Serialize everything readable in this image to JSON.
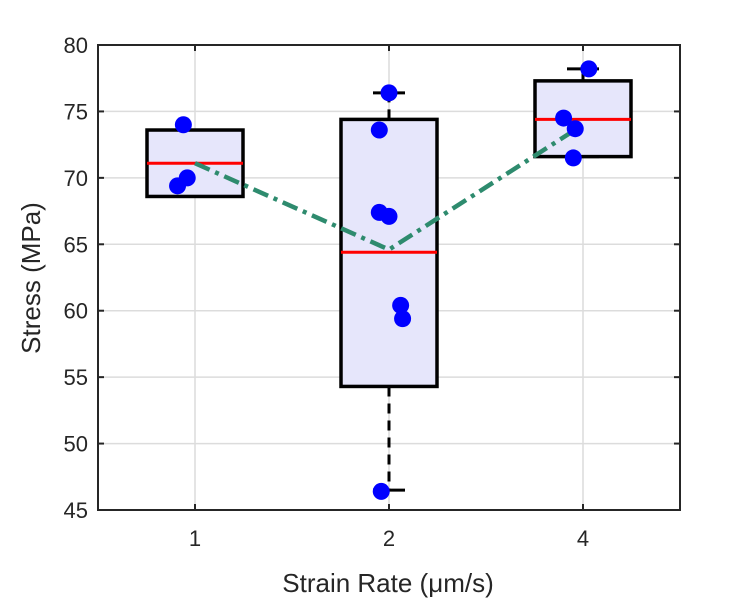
{
  "chart_data": {
    "type": "box",
    "xlabel": "Strain Rate (μm/s)",
    "ylabel": "Stress (MPa)",
    "categories": [
      "1",
      "2",
      "4"
    ],
    "ylim": [
      45,
      80
    ],
    "yticks": [
      45,
      50,
      55,
      60,
      65,
      70,
      75,
      80
    ],
    "grid": true,
    "boxes": [
      {
        "category": "1",
        "q1": 68.6,
        "median": 71.1,
        "q3": 73.6,
        "whisker_low": 68.6,
        "whisker_high": 73.6,
        "points": [
          [
            0.94,
            74.0
          ],
          [
            0.91,
            69.4
          ],
          [
            0.96,
            70.0
          ]
        ]
      },
      {
        "category": "2",
        "q1": 54.3,
        "median": 64.4,
        "q3": 74.4,
        "whisker_low": 46.5,
        "whisker_high": 76.4,
        "points": [
          [
            2.0,
            76.4
          ],
          [
            1.95,
            73.6
          ],
          [
            1.95,
            67.4
          ],
          [
            2.0,
            67.1
          ],
          [
            2.06,
            60.4
          ],
          [
            2.07,
            59.4
          ],
          [
            1.96,
            46.4
          ]
        ]
      },
      {
        "category": "4",
        "q1": 71.6,
        "median": 74.4,
        "q3": 77.3,
        "whisker_low": 71.6,
        "whisker_high": 78.2,
        "points": [
          [
            3.03,
            78.2
          ],
          [
            2.9,
            74.5
          ],
          [
            2.96,
            73.7
          ],
          [
            2.95,
            71.5
          ]
        ]
      }
    ],
    "mean_line": {
      "x": [
        1,
        2,
        3
      ],
      "y": [
        71.1,
        64.6,
        74.0
      ],
      "style": "dash-dot"
    },
    "colors": {
      "box_fill": "#e6e6fb",
      "box_edge": "#000000",
      "median": "#ff0000",
      "points": "#0000ff",
      "trend": "#2e8b6e",
      "grid": "#dcdcdc",
      "axis": "#262626"
    }
  }
}
